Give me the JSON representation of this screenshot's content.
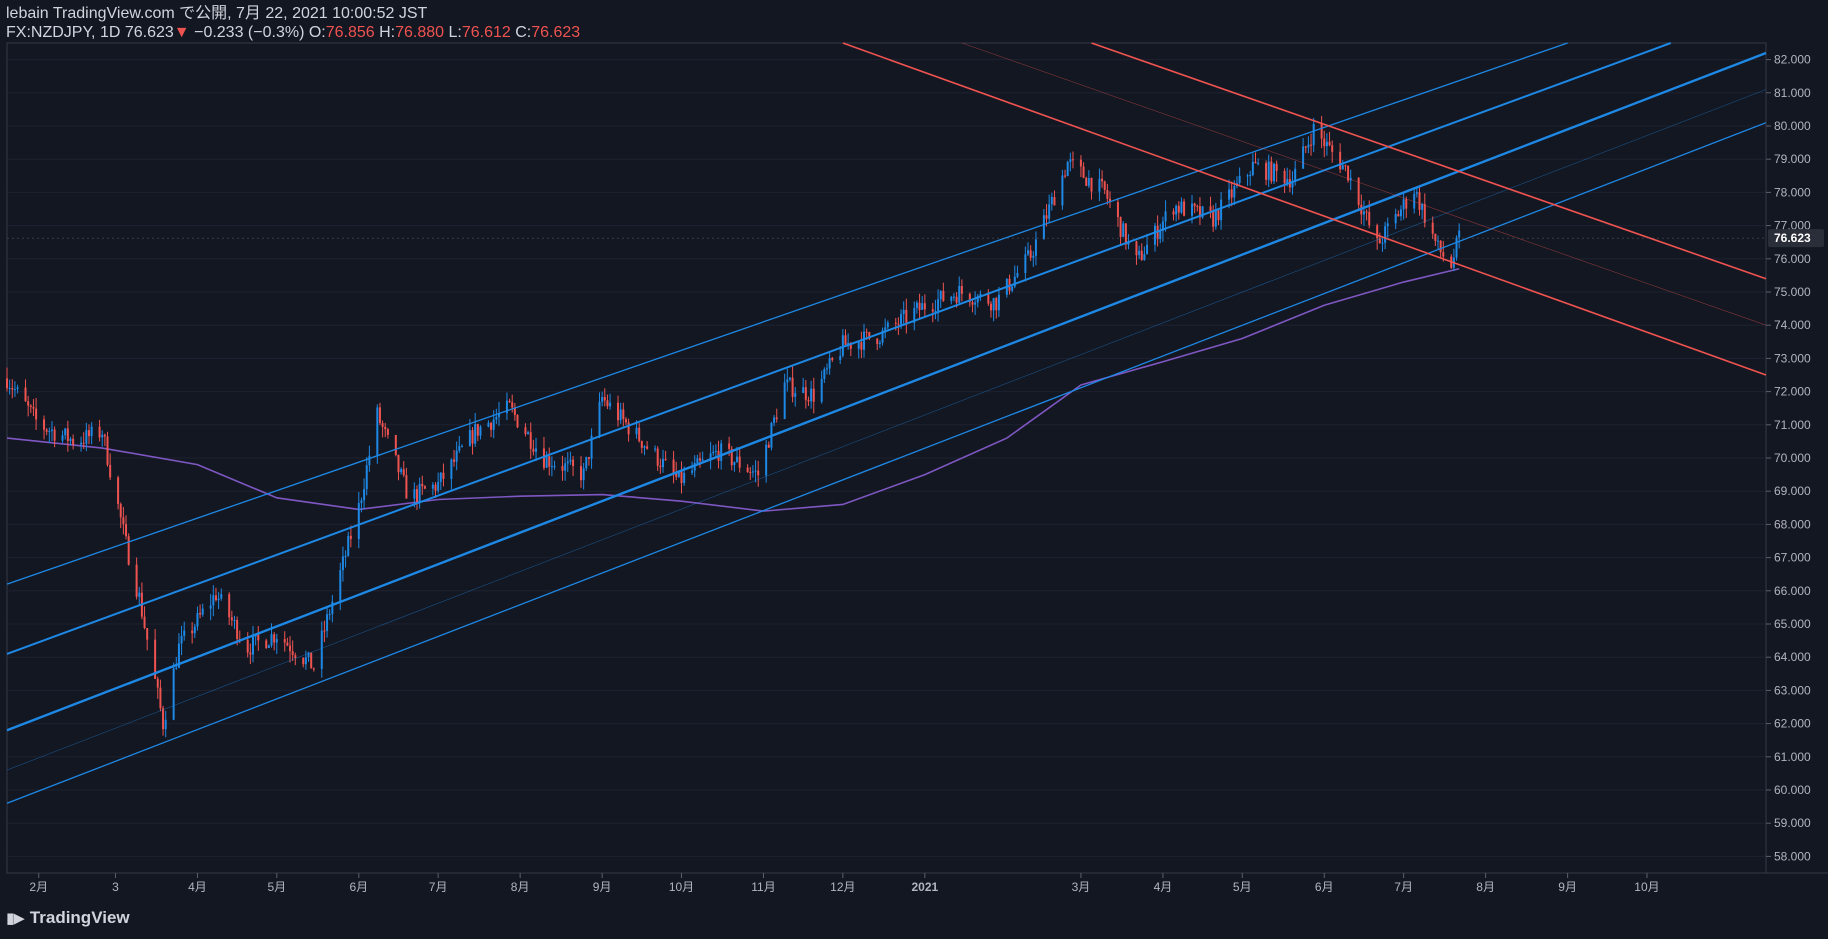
{
  "header": {
    "publish_line": "lebain TradingView.com で公開, 7月 22, 2021 10:00:52 JST",
    "symbol": "FX:NZDJPY, 1D",
    "last": "76.623",
    "change_arrow": "▼",
    "change": "−0.233 (−0.3%)",
    "o_label": "O:",
    "o": "76.856",
    "h_label": "H:",
    "h": "76.880",
    "l_label": "L:",
    "l": "76.612",
    "c_label": "C:",
    "c": "76.623"
  },
  "footer": {
    "logo_text": "TradingView",
    "logo_icon": "tradingview-logo-icon"
  },
  "colors": {
    "background": "#131722",
    "up": "#2962ff",
    "up_candle": "#1e88e5",
    "down_candle": "#ef5350",
    "channel": "#1e88e5",
    "down_channel": "#ef5350",
    "ma": "#7e57c2",
    "grid": "#1e2230"
  },
  "chart_data": {
    "type": "candlestick",
    "symbol": "FX:NZDJPY",
    "interval": "1D",
    "y_range": [
      57.5,
      82.5
    ],
    "y_ticks": [
      58,
      59,
      60,
      61,
      62,
      63,
      64,
      65,
      66,
      67,
      68,
      69,
      70,
      71,
      72,
      73,
      74,
      75,
      76,
      77,
      78,
      79,
      80,
      81,
      82
    ],
    "last_price_label": "76.623",
    "x_axis": {
      "domain": [
        "2020-01-20",
        "2021-11-15"
      ],
      "ticks": [
        {
          "date": "2020-02-01",
          "label": "2月"
        },
        {
          "date": "2020-03-01",
          "label": "3"
        },
        {
          "date": "2020-04-01",
          "label": "4月"
        },
        {
          "date": "2020-05-01",
          "label": "5月"
        },
        {
          "date": "2020-06-01",
          "label": "6月"
        },
        {
          "date": "2020-07-01",
          "label": "7月"
        },
        {
          "date": "2020-08-01",
          "label": "8月"
        },
        {
          "date": "2020-09-01",
          "label": "9月"
        },
        {
          "date": "2020-10-01",
          "label": "10月"
        },
        {
          "date": "2020-11-01",
          "label": "11月"
        },
        {
          "date": "2020-12-01",
          "label": "12月"
        },
        {
          "date": "2021-01-01",
          "label": "2021"
        },
        {
          "date": "2021-03-01",
          "label": "3月"
        },
        {
          "date": "2021-04-01",
          "label": "4月"
        },
        {
          "date": "2021-05-01",
          "label": "5月"
        },
        {
          "date": "2021-06-01",
          "label": "6月"
        },
        {
          "date": "2021-07-01",
          "label": "7月"
        },
        {
          "date": "2021-08-01",
          "label": "8月"
        },
        {
          "date": "2021-09-01",
          "label": "9月"
        },
        {
          "date": "2021-10-01",
          "label": "10月"
        }
      ]
    },
    "close_path": [
      [
        "2020-01-20",
        72.4
      ],
      [
        "2020-02-01",
        71.0
      ],
      [
        "2020-02-15",
        70.5
      ],
      [
        "2020-02-25",
        70.8
      ],
      [
        "2020-03-05",
        67.4
      ],
      [
        "2020-03-10",
        65.8
      ],
      [
        "2020-03-19",
        62.0
      ],
      [
        "2020-03-25",
        64.3
      ],
      [
        "2020-04-08",
        65.9
      ],
      [
        "2020-04-20",
        64.3
      ],
      [
        "2020-05-01",
        64.7
      ],
      [
        "2020-05-15",
        63.7
      ],
      [
        "2020-06-01",
        68.5
      ],
      [
        "2020-06-08",
        71.3
      ],
      [
        "2020-06-20",
        68.8
      ],
      [
        "2020-07-01",
        69.2
      ],
      [
        "2020-07-15",
        70.8
      ],
      [
        "2020-07-28",
        71.5
      ],
      [
        "2020-08-10",
        70.0
      ],
      [
        "2020-08-25",
        69.5
      ],
      [
        "2020-09-01",
        71.8
      ],
      [
        "2020-09-15",
        70.6
      ],
      [
        "2020-09-30",
        69.3
      ],
      [
        "2020-10-15",
        70.2
      ],
      [
        "2020-10-30",
        69.5
      ],
      [
        "2020-11-09",
        72.2
      ],
      [
        "2020-11-20",
        71.9
      ],
      [
        "2020-12-01",
        73.4
      ],
      [
        "2020-12-15",
        73.7
      ],
      [
        "2021-01-01",
        74.6
      ],
      [
        "2021-01-14",
        75.0
      ],
      [
        "2021-01-28",
        74.7
      ],
      [
        "2021-02-10",
        76.1
      ],
      [
        "2021-02-24",
        78.9
      ],
      [
        "2021-03-10",
        78.0
      ],
      [
        "2021-03-22",
        75.9
      ],
      [
        "2021-04-05",
        77.6
      ],
      [
        "2021-04-20",
        77.2
      ],
      [
        "2021-05-05",
        78.8
      ],
      [
        "2021-05-20",
        78.4
      ],
      [
        "2021-05-28",
        79.9
      ],
      [
        "2021-06-10",
        78.6
      ],
      [
        "2021-06-21",
        76.4
      ],
      [
        "2021-07-05",
        78.1
      ],
      [
        "2021-07-14",
        76.3
      ],
      [
        "2021-07-19",
        75.8
      ],
      [
        "2021-07-22",
        76.623
      ]
    ],
    "series": [
      {
        "name": "MA",
        "type": "line",
        "points": [
          [
            "2020-01-20",
            70.6
          ],
          [
            "2020-02-25",
            70.3
          ],
          [
            "2020-04-01",
            69.8
          ],
          [
            "2020-05-01",
            68.8
          ],
          [
            "2020-06-01",
            68.45
          ],
          [
            "2020-07-01",
            68.75
          ],
          [
            "2020-08-01",
            68.85
          ],
          [
            "2020-09-01",
            68.9
          ],
          [
            "2020-10-01",
            68.7
          ],
          [
            "2020-11-01",
            68.4
          ],
          [
            "2020-12-01",
            68.6
          ],
          [
            "2021-01-01",
            69.5
          ],
          [
            "2021-02-01",
            70.6
          ],
          [
            "2021-03-01",
            72.2
          ],
          [
            "2021-04-01",
            72.9
          ],
          [
            "2021-05-01",
            73.6
          ],
          [
            "2021-06-01",
            74.6
          ],
          [
            "2021-07-01",
            75.3
          ],
          [
            "2021-07-22",
            75.7
          ]
        ]
      }
    ],
    "trendlines": [
      {
        "group": "ascending-channel-outer-upper",
        "color": "#1e88e5",
        "width": 1.3,
        "points": [
          [
            "2020-01-20",
            66.2
          ],
          [
            "2021-09-01",
            82.5
          ]
        ]
      },
      {
        "group": "ascending-channel-upper",
        "color": "#1e88e5",
        "width": 2.0,
        "points": [
          [
            "2020-01-20",
            64.1
          ],
          [
            "2021-10-10",
            82.5
          ]
        ]
      },
      {
        "group": "ascending-channel-middle",
        "color": "#1e88e5",
        "width": 2.4,
        "points": [
          [
            "2020-01-20",
            61.8
          ],
          [
            "2021-11-15",
            82.2
          ]
        ]
      },
      {
        "group": "ascending-channel-lower",
        "color": "#1e88e5",
        "width": 1.3,
        "points": [
          [
            "2020-01-20",
            59.6
          ],
          [
            "2021-11-15",
            80.1
          ]
        ]
      },
      {
        "group": "ascending-channel-median-faint",
        "color": "#1e88e5",
        "width": 0.6,
        "points": [
          [
            "2020-01-20",
            60.6
          ],
          [
            "2021-11-15",
            81.1
          ]
        ]
      },
      {
        "group": "descending-channel-upper",
        "color": "#ef5350",
        "width": 1.6,
        "points": [
          [
            "2021-03-05",
            82.5
          ],
          [
            "2021-11-15",
            75.4
          ]
        ]
      },
      {
        "group": "descending-channel-lower",
        "color": "#ef5350",
        "width": 1.6,
        "points": [
          [
            "2020-12-01",
            82.5
          ],
          [
            "2021-11-15",
            72.5
          ]
        ]
      },
      {
        "group": "descending-channel-median-faint",
        "color": "#ef5350",
        "width": 0.6,
        "points": [
          [
            "2021-01-15",
            82.5
          ],
          [
            "2021-11-15",
            74.0
          ]
        ]
      }
    ]
  }
}
